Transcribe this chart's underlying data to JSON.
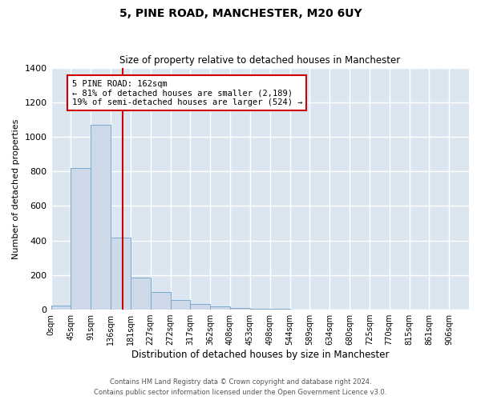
{
  "title": "5, PINE ROAD, MANCHESTER, M20 6UY",
  "subtitle": "Size of property relative to detached houses in Manchester",
  "xlabel": "Distribution of detached houses by size in Manchester",
  "ylabel": "Number of detached properties",
  "bar_color": "#cdd9e8",
  "bar_edge_color": "#7aaacf",
  "background_color": "#dce6f0",
  "grid_color": "#ffffff",
  "annotation_text": "5 PINE ROAD: 162sqm\n← 81% of detached houses are smaller (2,189)\n19% of semi-detached houses are larger (524) →",
  "annotation_box_color": "white",
  "annotation_box_edge_color": "#cc0000",
  "property_line_color": "#cc0000",
  "property_bin_index": 3.6,
  "categories": [
    "0sqm",
    "45sqm",
    "91sqm",
    "136sqm",
    "181sqm",
    "227sqm",
    "272sqm",
    "317sqm",
    "362sqm",
    "408sqm",
    "453sqm",
    "498sqm",
    "544sqm",
    "589sqm",
    "634sqm",
    "680sqm",
    "725sqm",
    "770sqm",
    "815sqm",
    "861sqm",
    "906sqm"
  ],
  "values": [
    25,
    820,
    1070,
    415,
    185,
    100,
    55,
    35,
    20,
    10,
    5,
    3,
    0,
    0,
    0,
    0,
    0,
    0,
    0,
    0
  ],
  "ylim": [
    0,
    1400
  ],
  "yticks": [
    0,
    200,
    400,
    600,
    800,
    1000,
    1200,
    1400
  ],
  "footer1": "Contains HM Land Registry data © Crown copyright and database right 2024.",
  "footer2": "Contains public sector information licensed under the Open Government Licence v3.0."
}
